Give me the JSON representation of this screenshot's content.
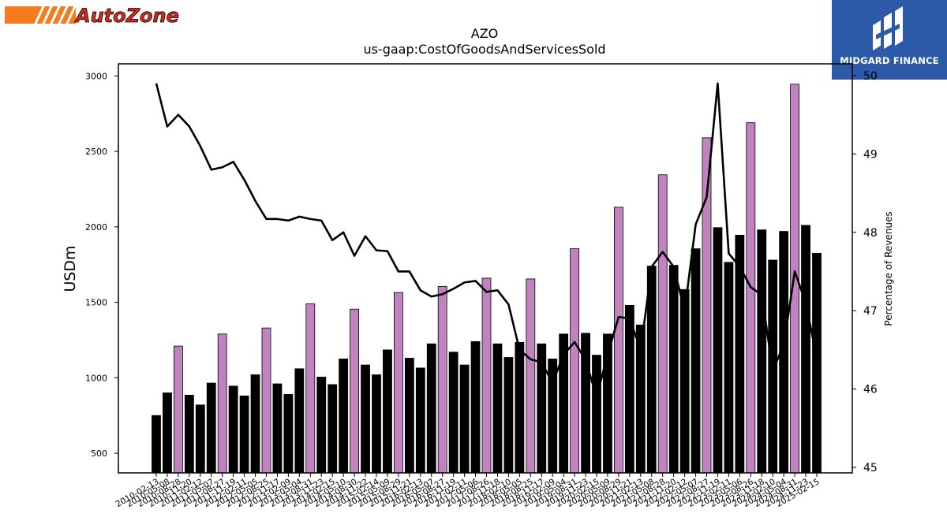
{
  "logos": {
    "left": {
      "text": "AutoZone",
      "stripe_color": "#f47b20",
      "text_color": "#d52b1e",
      "icon": "autozone-logo-icon"
    },
    "right": {
      "text": "MIDGARD FINANCE",
      "bg_color": "#2d5aa8",
      "icon": "midgard-logo-icon"
    }
  },
  "chart_data": {
    "type": "bar",
    "title": "AZO",
    "subtitle": "us-gaap:CostOfGoodsAndServicesSold",
    "ylabel": "USDm",
    "y2label": "Percentage of Revenues",
    "ylim": [
      370,
      3080
    ],
    "y2lim": [
      44.93,
      50.15
    ],
    "yticks": [
      500,
      1000,
      1500,
      2000,
      2500,
      3000
    ],
    "y2ticks": [
      45,
      46,
      47,
      48,
      49,
      50
    ],
    "colors": {
      "q4_bar": "#c083c0",
      "other_bar": "#000000",
      "line": "#000000"
    },
    "categories": [
      "2010-02-13",
      "2010-05-08",
      "2010-08-28",
      "2010-11-20",
      "2011-02-12",
      "2011-05-07",
      "2011-08-27",
      "2011-11-19",
      "2012-02-11",
      "2012-05-05",
      "2012-08-25",
      "2012-11-17",
      "2013-02-09",
      "2013-05-04",
      "2013-08-31",
      "2013-11-23",
      "2014-02-15",
      "2014-05-10",
      "2014-08-30",
      "2014-11-22",
      "2015-02-14",
      "2015-05-09",
      "2015-08-29",
      "2015-11-21",
      "2016-02-13",
      "2016-05-07",
      "2016-08-27",
      "2016-11-19",
      "2017-02-11",
      "2017-05-06",
      "2017-08-26",
      "2017-11-18",
      "2018-02-10",
      "2018-05-05",
      "2018-08-25",
      "2018-11-17",
      "2019-02-09",
      "2019-05-04",
      "2019-08-31",
      "2019-11-23",
      "2020-02-15",
      "2020-05-09",
      "2020-08-29",
      "2020-11-21",
      "2021-02-13",
      "2021-05-08",
      "2021-08-28",
      "2021-11-20",
      "2022-02-12",
      "2022-05-07",
      "2022-08-27",
      "2022-11-19",
      "2023-02-11",
      "2023-05-06",
      "2023-08-26",
      "2023-11-18",
      "2024-02-10",
      "2024-05-04",
      "2024-08-31",
      "2024-11-23",
      "2025-02-15"
    ],
    "series": [
      {
        "values": [
          750,
          900,
          1210,
          885,
          820,
          965,
          1290,
          945,
          880,
          1020,
          1330,
          960,
          890,
          1060,
          1490,
          1005,
          955,
          1125,
          1455,
          1085,
          1020,
          1185,
          1565,
          1130,
          1065,
          1225,
          1605,
          1170,
          1085,
          1240,
          1660,
          1225,
          1135,
          1235,
          1655,
          1225,
          1125,
          1290,
          1855,
          1295,
          1150,
          1290,
          2130,
          1480,
          1350,
          1740,
          2345,
          1745,
          1585,
          1855,
          2590,
          1995,
          1765,
          1945,
          2690,
          1980,
          1780,
          1970,
          2945,
          2010,
          1825
        ]
      },
      {
        "values": [
          49.9,
          49.35,
          49.5,
          49.35,
          49.1,
          48.8,
          48.83,
          48.9,
          48.67,
          48.4,
          48.17,
          48.17,
          48.15,
          48.2,
          48.17,
          48.15,
          47.9,
          48.0,
          47.7,
          47.95,
          47.77,
          47.76,
          47.5,
          47.5,
          47.26,
          47.18,
          47.21,
          47.28,
          47.36,
          47.38,
          47.24,
          47.26,
          47.08,
          46.5,
          46.38,
          46.34,
          46.08,
          46.44,
          46.6,
          46.37,
          45.9,
          46.44,
          46.92,
          46.9,
          46.5,
          47.56,
          47.75,
          47.56,
          47.0,
          48.1,
          48.45,
          49.9,
          47.73,
          47.56,
          47.3,
          47.2,
          46.24,
          46.56,
          47.5,
          47.1,
          46.4
        ]
      }
    ]
  }
}
